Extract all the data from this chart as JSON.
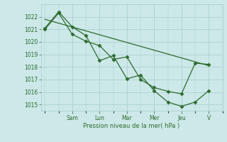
{
  "background_color": "#cce8e8",
  "grid_color": "#a8cccc",
  "line_color": "#2d6b2d",
  "marker_color": "#2d6b2d",
  "xlabel": "Pression niveau de la mer( hPa )",
  "ylim": [
    1014.5,
    1023.0
  ],
  "yticks": [
    1015,
    1016,
    1017,
    1018,
    1019,
    1020,
    1021,
    1022
  ],
  "day_labels": [
    "Sam",
    "Lun",
    "Mar",
    "Mer",
    "Jeu",
    "V"
  ],
  "day_positions": [
    2.0,
    4.0,
    6.0,
    8.0,
    10.0,
    12.0
  ],
  "xlim": [
    -0.3,
    13.0
  ],
  "line1_x": [
    0,
    1,
    2,
    3,
    4,
    5,
    6,
    7,
    8,
    9,
    10,
    11,
    12
  ],
  "line1_y": [
    1021.1,
    1022.4,
    1021.2,
    1020.5,
    1018.5,
    1018.9,
    1017.05,
    1017.35,
    1016.1,
    1015.2,
    1014.85,
    1015.2,
    1016.1
  ],
  "line2_x": [
    0,
    1,
    2,
    3,
    4,
    5,
    6,
    7,
    8,
    9,
    10,
    11,
    12
  ],
  "line2_y": [
    1021.0,
    1022.3,
    1020.6,
    1020.05,
    1019.7,
    1018.6,
    1018.8,
    1017.0,
    1016.35,
    1016.05,
    1015.85,
    1018.3,
    1018.2
  ],
  "trend_x": [
    0,
    12
  ],
  "trend_y": [
    1021.8,
    1018.1
  ]
}
